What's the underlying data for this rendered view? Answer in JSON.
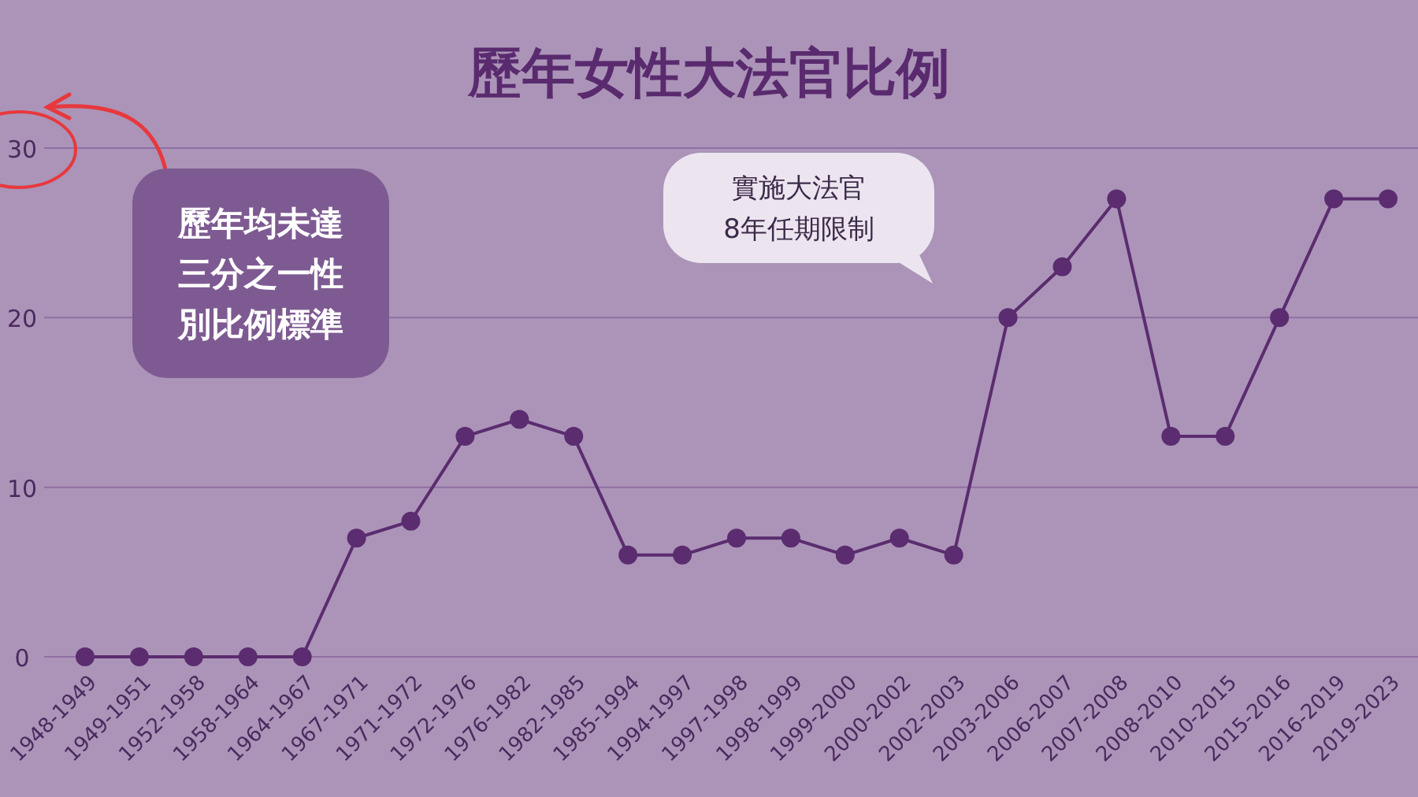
{
  "chart_data": {
    "type": "line",
    "title": "歷年女性大法官比例",
    "categories": [
      "1948-1949",
      "1949-1951",
      "1952-1958",
      "1958-1964",
      "1964-1967",
      "1967-1971",
      "1971-1972",
      "1972-1976",
      "1976-1982",
      "1982-1985",
      "1985-1994",
      "1994-1997",
      "1997-1998",
      "1998-1999",
      "1999-2000",
      "2000-2002",
      "2002-2003",
      "2003-2006",
      "2006-2007",
      "2007-2008",
      "2008-2010",
      "2010-2015",
      "2015-2016",
      "2016-2019",
      "2019-2023"
    ],
    "series": [
      {
        "color": "#5b2c6f",
        "values": [
          0,
          0,
          0,
          0,
          0,
          7,
          8,
          13,
          14,
          13,
          6,
          6,
          7,
          7,
          6,
          7,
          6,
          20,
          23,
          27,
          13,
          13,
          20,
          27,
          27
        ]
      }
    ],
    "ylim": [
      0,
      30
    ],
    "yticks": [
      0,
      10,
      20,
      30
    ],
    "grid": "y",
    "marker": "circle",
    "annotations": [
      "歷年均未達三分之一性別比例標準",
      "實施大法官8年任期限制"
    ]
  }
}
